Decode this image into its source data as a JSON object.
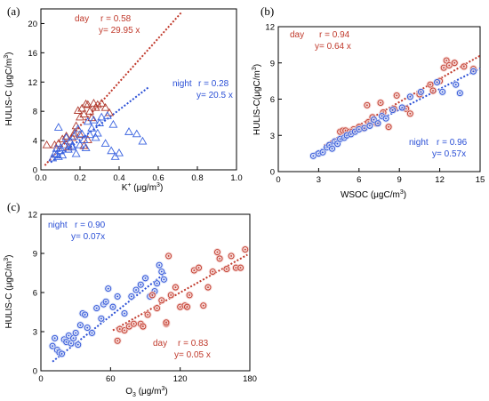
{
  "colors": {
    "day": "#c0392b",
    "night": "#2a4fd6",
    "day_fill": "#f3c9c6",
    "night_fill": "#cfd9f7",
    "tri_night": "#3a63e0",
    "tri_day": "#b03a2e"
  },
  "chart_data": [
    {
      "panel": "(a)",
      "type": "scatter",
      "marker": "triangle",
      "xlabel_main": "K",
      "xlabel_sup": "+",
      "xlabel_unit": " (μg/m",
      "xlabel_unit_sup": "3",
      "xlabel_close": ")",
      "ylabel": "HULIS-C (μgC/m",
      "ylabel_sup": "3",
      "ylabel_close": ")",
      "xlim": [
        0,
        1.0
      ],
      "ylim": [
        0,
        22
      ],
      "xticks": [
        "0.0",
        "0.2",
        "0.4",
        "0.6",
        "0.8",
        "1.0"
      ],
      "xtick_values": [
        0,
        0.2,
        0.4,
        0.6,
        0.8,
        1.0
      ],
      "yticks": [
        "0",
        "4",
        "8",
        "12",
        "16",
        "20"
      ],
      "ytick_values": [
        0,
        4,
        8,
        12,
        16,
        20
      ],
      "series": [
        {
          "name": "day",
          "label_left": "day",
          "r_text": "r = 0.58",
          "fit_text": "y= 29.95 x",
          "slope": 29.95,
          "fit_x": [
            0.02,
            0.72
          ],
          "points": [
            [
              0.03,
              3.4
            ],
            [
              0.07,
              3.4
            ],
            [
              0.09,
              3.6
            ],
            [
              0.11,
              4.2
            ],
            [
              0.13,
              4.6
            ],
            [
              0.15,
              3.9
            ],
            [
              0.16,
              4.4
            ],
            [
              0.17,
              5.0
            ],
            [
              0.18,
              6.0
            ],
            [
              0.19,
              8.1
            ],
            [
              0.2,
              7.2
            ],
            [
              0.21,
              8.4
            ],
            [
              0.22,
              7.6
            ],
            [
              0.23,
              9.0
            ],
            [
              0.24,
              8.9
            ],
            [
              0.25,
              8.0
            ],
            [
              0.26,
              7.1
            ],
            [
              0.27,
              9.1
            ],
            [
              0.28,
              8.5
            ],
            [
              0.29,
              8.9
            ],
            [
              0.31,
              9.1
            ],
            [
              0.33,
              8.5
            ],
            [
              0.35,
              7.8
            ],
            [
              0.2,
              4.8
            ],
            [
              0.24,
              4.1
            ],
            [
              0.14,
              3.1
            ],
            [
              0.22,
              3.3
            ]
          ]
        },
        {
          "name": "night",
          "label_left": "night",
          "r_text": "r = 0.28",
          "fit_text": "y= 20.5 x",
          "slope": 20.5,
          "fit_x": [
            0.05,
            0.55
          ],
          "points": [
            [
              0.06,
              1.6
            ],
            [
              0.08,
              2.1
            ],
            [
              0.09,
              1.8
            ],
            [
              0.1,
              2.6
            ],
            [
              0.11,
              2.0
            ],
            [
              0.12,
              3.4
            ],
            [
              0.13,
              4.4
            ],
            [
              0.14,
              2.8
            ],
            [
              0.15,
              3.9
            ],
            [
              0.16,
              3.1
            ],
            [
              0.17,
              4.6
            ],
            [
              0.18,
              2.2
            ],
            [
              0.19,
              5.6
            ],
            [
              0.2,
              3.4
            ],
            [
              0.21,
              4.9
            ],
            [
              0.22,
              4.1
            ],
            [
              0.23,
              3.0
            ],
            [
              0.24,
              6.6
            ],
            [
              0.25,
              4.8
            ],
            [
              0.26,
              5.7
            ],
            [
              0.27,
              6.8
            ],
            [
              0.28,
              4.4
            ],
            [
              0.29,
              5.0
            ],
            [
              0.3,
              6.4
            ],
            [
              0.31,
              7.2
            ],
            [
              0.33,
              3.6
            ],
            [
              0.36,
              2.6
            ],
            [
              0.37,
              6.2
            ],
            [
              0.38,
              1.8
            ],
            [
              0.4,
              2.3
            ],
            [
              0.45,
              5.2
            ],
            [
              0.49,
              4.9
            ],
            [
              0.52,
              3.9
            ],
            [
              0.09,
              5.8
            ],
            [
              0.1,
              3.0
            ],
            [
              0.07,
              2.2
            ],
            [
              0.08,
              2.9
            ],
            [
              0.16,
              3.3
            ],
            [
              0.34,
              7.4
            ]
          ]
        }
      ]
    },
    {
      "panel": "(b)",
      "type": "scatter",
      "marker": "circle-dot",
      "xlabel_main": "WSOC (μgC/m",
      "xlabel_sup": "3",
      "xlabel_close": ")",
      "ylabel": "HULIS-C(μgC/m",
      "ylabel_sup": "3",
      "ylabel_close": ")",
      "xlim": [
        0,
        15
      ],
      "ylim": [
        0,
        12
      ],
      "xticks": [
        "0",
        "3",
        "6",
        "9",
        "12",
        "15"
      ],
      "xtick_values": [
        0,
        3,
        6,
        9,
        12,
        15
      ],
      "yticks": [
        "0",
        "3",
        "6",
        "9",
        "12"
      ],
      "ytick_values": [
        0,
        3,
        6,
        9,
        12
      ],
      "series": [
        {
          "name": "day",
          "label_left": "day",
          "r_text": "r = 0.94",
          "fit_text": "y= 0.64 x",
          "slope": 0.64,
          "fit_x": [
            3.4,
            15
          ],
          "points": [
            [
              4.6,
              3.3
            ],
            [
              4.8,
              3.4
            ],
            [
              5.0,
              3.4
            ],
            [
              5.3,
              3.3
            ],
            [
              5.6,
              3.5
            ],
            [
              6.0,
              3.7
            ],
            [
              6.6,
              5.5
            ],
            [
              6.7,
              4.1
            ],
            [
              7.0,
              4.5
            ],
            [
              7.3,
              4.0
            ],
            [
              7.6,
              5.7
            ],
            [
              7.8,
              4.9
            ],
            [
              8.2,
              3.7
            ],
            [
              8.6,
              5.2
            ],
            [
              8.8,
              6.3
            ],
            [
              9.5,
              5.2
            ],
            [
              9.8,
              4.8
            ],
            [
              10.5,
              6.4
            ],
            [
              11.3,
              7.2
            ],
            [
              11.5,
              6.7
            ],
            [
              12.0,
              7.5
            ],
            [
              12.3,
              8.6
            ],
            [
              12.5,
              9.2
            ],
            [
              12.7,
              8.8
            ],
            [
              13.1,
              9.0
            ],
            [
              13.8,
              8.7
            ],
            [
              14.5,
              8.5
            ],
            [
              6.3,
              3.6
            ],
            [
              5.5,
              3.3
            ]
          ]
        },
        {
          "name": "night",
          "label_left": "night",
          "r_text": "r = 0.96",
          "fit_text": "y= 0.57x",
          "slope": 0.57,
          "fit_x": [
            2.7,
            15
          ],
          "points": [
            [
              2.6,
              1.3
            ],
            [
              3.0,
              1.5
            ],
            [
              3.3,
              1.6
            ],
            [
              3.6,
              2.0
            ],
            [
              3.8,
              2.2
            ],
            [
              4.0,
              1.9
            ],
            [
              4.2,
              2.5
            ],
            [
              4.4,
              2.3
            ],
            [
              4.6,
              2.7
            ],
            [
              4.9,
              2.8
            ],
            [
              5.1,
              3.0
            ],
            [
              5.4,
              3.1
            ],
            [
              5.7,
              3.3
            ],
            [
              6.0,
              3.5
            ],
            [
              6.4,
              3.6
            ],
            [
              6.8,
              3.8
            ],
            [
              7.1,
              4.3
            ],
            [
              7.4,
              4.0
            ],
            [
              7.7,
              4.6
            ],
            [
              8.0,
              4.4
            ],
            [
              8.5,
              5.1
            ],
            [
              9.2,
              5.3
            ],
            [
              9.8,
              6.2
            ],
            [
              10.6,
              6.6
            ],
            [
              11.8,
              7.4
            ],
            [
              12.2,
              6.6
            ],
            [
              13.2,
              7.2
            ],
            [
              14.5,
              8.3
            ],
            [
              13.5,
              6.5
            ]
          ]
        }
      ]
    },
    {
      "panel": "(c)",
      "type": "scatter",
      "marker": "circle-dot",
      "xlabel_main": "O",
      "xlabel_sub": "3",
      "xlabel_unit": " (μg/m",
      "xlabel_unit_sup": "3",
      "xlabel_close": ")",
      "ylabel": "HULIS-C (μgC/m",
      "ylabel_sup": "3",
      "ylabel_close": ")",
      "xlim": [
        0,
        180
      ],
      "ylim": [
        0,
        12
      ],
      "xticks": [
        "0",
        "60",
        "120",
        "180"
      ],
      "xtick_values": [
        0,
        60,
        120,
        180
      ],
      "yticks": [
        "0",
        "3",
        "6",
        "9",
        "12"
      ],
      "ytick_values": [
        0,
        3,
        6,
        9,
        12
      ],
      "series": [
        {
          "name": "night",
          "label_left": "night",
          "r_text": "r = 0.90",
          "fit_text": "y= 0.07x",
          "slope": 0.07,
          "fit_x": [
            10,
            108
          ],
          "points": [
            [
              10,
              1.9
            ],
            [
              12,
              2.5
            ],
            [
              14,
              1.6
            ],
            [
              16,
              1.4
            ],
            [
              18,
              1.3
            ],
            [
              20,
              2.4
            ],
            [
              22,
              2.2
            ],
            [
              24,
              2.7
            ],
            [
              26,
              2.1
            ],
            [
              28,
              2.5
            ],
            [
              30,
              2.9
            ],
            [
              32,
              2.0
            ],
            [
              34,
              3.5
            ],
            [
              36,
              4.4
            ],
            [
              38,
              4.3
            ],
            [
              40,
              3.3
            ],
            [
              44,
              2.9
            ],
            [
              48,
              4.8
            ],
            [
              52,
              4.0
            ],
            [
              54,
              5.1
            ],
            [
              56,
              5.3
            ],
            [
              58,
              6.3
            ],
            [
              62,
              4.9
            ],
            [
              66,
              5.7
            ],
            [
              72,
              4.4
            ],
            [
              78,
              5.7
            ],
            [
              82,
              6.2
            ],
            [
              86,
              6.6
            ],
            [
              90,
              7.1
            ],
            [
              94,
              5.7
            ],
            [
              98,
              6.1
            ],
            [
              100,
              6.7
            ],
            [
              102,
              8.1
            ],
            [
              104,
              7.6
            ],
            [
              106,
              7.0
            ]
          ]
        },
        {
          "name": "day",
          "label_left": "day",
          "r_text": "r = 0.83",
          "fit_text": "y= 0.05 x",
          "slope": 0.05,
          "fit_x": [
            62,
            178
          ],
          "points": [
            [
              66,
              2.3
            ],
            [
              68,
              3.2
            ],
            [
              72,
              3.1
            ],
            [
              76,
              3.4
            ],
            [
              80,
              3.6
            ],
            [
              86,
              3.6
            ],
            [
              92,
              4.3
            ],
            [
              96,
              5.8
            ],
            [
              100,
              4.8
            ],
            [
              104,
              5.4
            ],
            [
              108,
              3.6
            ],
            [
              110,
              8.8
            ],
            [
              112,
              5.8
            ],
            [
              116,
              6.4
            ],
            [
              120,
              4.9
            ],
            [
              124,
              5.0
            ],
            [
              126,
              4.9
            ],
            [
              128,
              5.8
            ],
            [
              132,
              7.7
            ],
            [
              136,
              7.9
            ],
            [
              140,
              5.0
            ],
            [
              144,
              6.4
            ],
            [
              148,
              7.6
            ],
            [
              152,
              9.1
            ],
            [
              154,
              8.6
            ],
            [
              160,
              7.8
            ],
            [
              164,
              8.8
            ],
            [
              168,
              7.9
            ],
            [
              172,
              7.9
            ],
            [
              176,
              9.3
            ],
            [
              108,
              3.7
            ],
            [
              88,
              3.4
            ]
          ]
        }
      ]
    }
  ]
}
